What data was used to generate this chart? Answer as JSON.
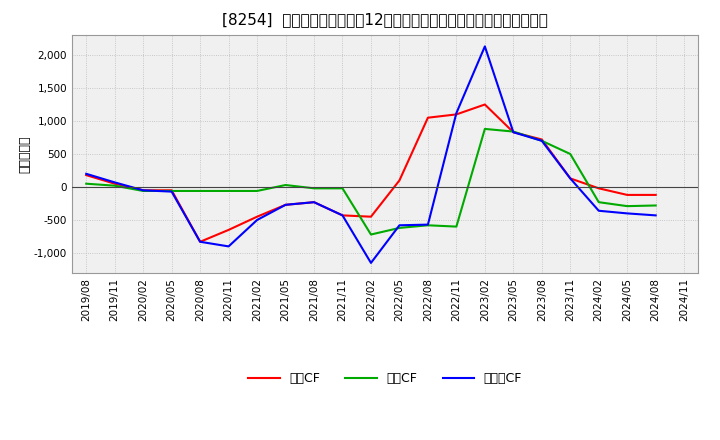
{
  "title": "[8254]  キャッシュフローの12か月移動合計の対前年同期増減額の推移",
  "ylabel": "（百万円）",
  "xlabel_dates": [
    "2019/08",
    "2019/11",
    "2020/02",
    "2020/05",
    "2020/08",
    "2020/11",
    "2021/02",
    "2021/05",
    "2021/08",
    "2021/11",
    "2022/02",
    "2022/05",
    "2022/08",
    "2022/11",
    "2023/02",
    "2023/05",
    "2023/08",
    "2023/11",
    "2024/02",
    "2024/05",
    "2024/08",
    "2024/11"
  ],
  "operating_cf": [
    180,
    50,
    -50,
    -50,
    -830,
    -650,
    -450,
    -270,
    -230,
    -430,
    -450,
    100,
    1050,
    1100,
    1250,
    830,
    720,
    130,
    -20,
    -120,
    -120,
    null
  ],
  "investing_cf": [
    50,
    20,
    -60,
    -60,
    -60,
    -60,
    -60,
    30,
    -20,
    -20,
    -720,
    -620,
    -580,
    -600,
    880,
    840,
    700,
    500,
    -230,
    -290,
    -280,
    null
  ],
  "free_cf": [
    200,
    70,
    -50,
    -70,
    -830,
    -900,
    -500,
    -270,
    -230,
    -430,
    -1150,
    -580,
    -570,
    1120,
    2130,
    830,
    700,
    130,
    -360,
    -400,
    -430,
    null
  ],
  "ylim": [
    -1300,
    2300
  ],
  "yticks": [
    -1000,
    -500,
    0,
    500,
    1000,
    1500,
    2000
  ],
  "line_colors": {
    "operating": "#ff0000",
    "investing": "#00aa00",
    "free": "#0000ff"
  },
  "legend_labels": [
    "営業CF",
    "投資CF",
    "フリーCF"
  ],
  "bg_color": "#ffffff",
  "plot_bg_color": "#f0f0f0",
  "grid_color": "#bbbbbb",
  "title_fontsize": 11,
  "axis_fontsize": 9,
  "tick_fontsize": 7.5
}
